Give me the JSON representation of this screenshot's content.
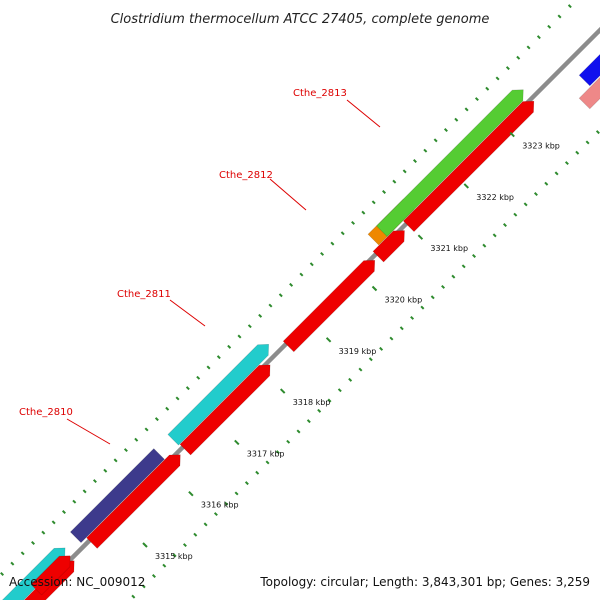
{
  "title": "Clostridium thermocellum ATCC 27405, complete genome",
  "footer": {
    "accession": "Accession: NC_009012",
    "topology": "Topology: circular; Length: 3,843,301 bp; Genes: 3,259"
  },
  "colors": {
    "backbone": "#8c8c8c",
    "tick": "#2e8b2e",
    "label": "#dd0000",
    "red": "#ee0000",
    "cyan": "#22cccc",
    "navy": "#3d3a8c",
    "green": "#55cc33",
    "orange": "#ee8800",
    "blue": "#1010ee",
    "pink": "#ee8888"
  },
  "gene_labels": [
    {
      "text": "Cthe_2810"
    },
    {
      "text": "Cthe_2811"
    },
    {
      "text": "Cthe_2812"
    },
    {
      "text": "Cthe_2813"
    }
  ],
  "kbp_ticks": [
    {
      "text": "3315 kbp"
    },
    {
      "text": "3316 kbp"
    },
    {
      "text": "3317 kbp"
    },
    {
      "text": "3318 kbp"
    },
    {
      "text": "3319 kbp"
    },
    {
      "text": "3320 kbp"
    },
    {
      "text": "3321 kbp"
    },
    {
      "text": "3322 kbp"
    },
    {
      "text": "3323 kbp"
    }
  ]
}
